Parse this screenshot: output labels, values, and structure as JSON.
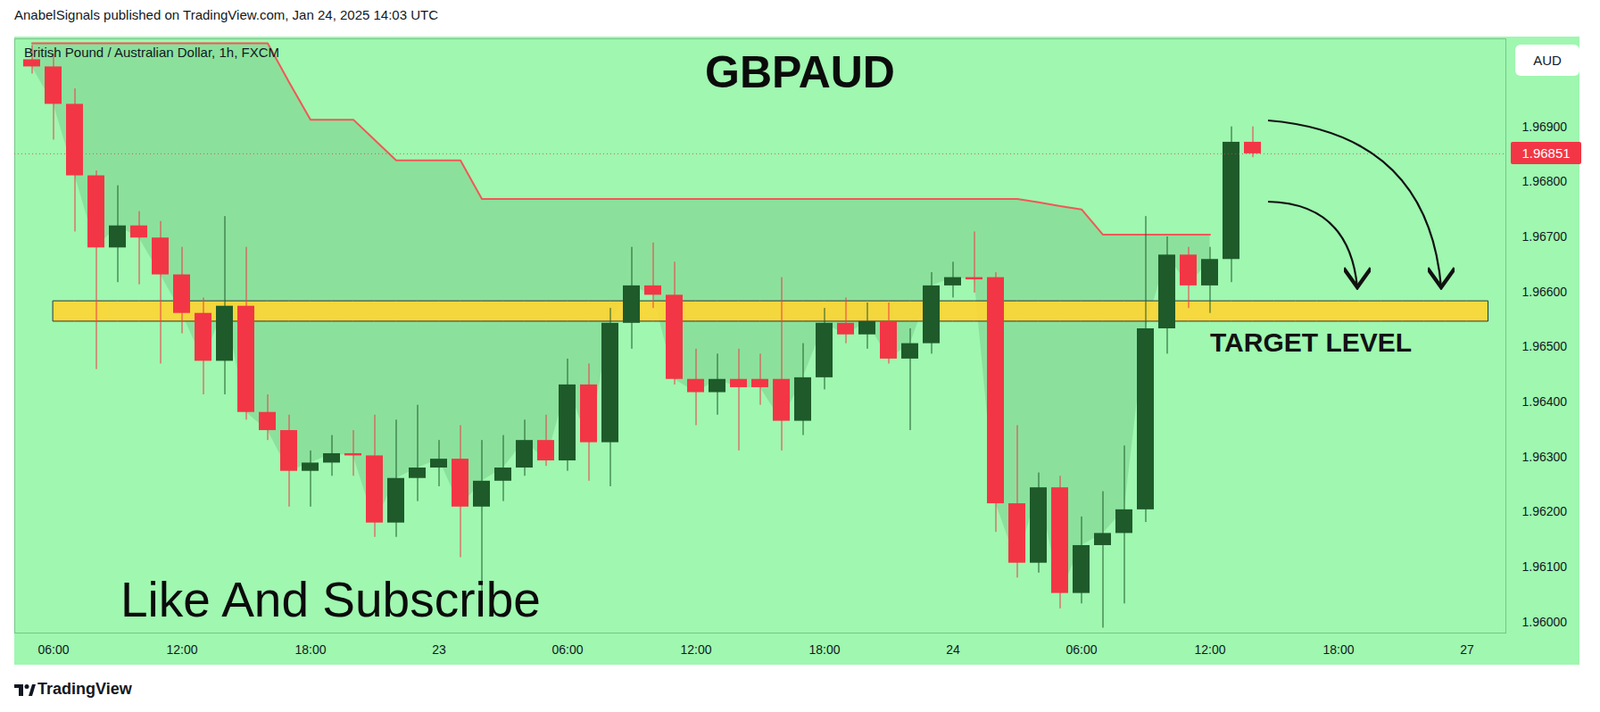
{
  "header": "AnabelSignals published on TradingView.com, Jan 24, 2025 14:03 UTC",
  "footer": "TradingView",
  "chart_data": {
    "type": "candlestick",
    "title": "GBPAUD",
    "subtitle": "British Pound / Australian Dollar, 1h, FXCM",
    "currency": "AUD",
    "categories": [
      null,
      "06:00",
      null,
      null,
      null,
      null,
      null,
      "12:00",
      null,
      null,
      null,
      null,
      null,
      "18:00",
      null,
      null,
      null,
      null,
      null,
      "23",
      null,
      null,
      null,
      null,
      null,
      "06:00",
      null,
      null,
      null,
      null,
      null,
      "12:00",
      null,
      null,
      null,
      null,
      null,
      "18:00",
      null,
      null,
      null,
      null,
      null,
      "24",
      null,
      null,
      null,
      null,
      null,
      "06:00",
      null,
      null,
      null,
      null,
      null,
      "12:00",
      null,
      null,
      null,
      null,
      null,
      "18:00",
      null,
      null,
      null,
      null,
      null,
      "27",
      null
    ],
    "series": [
      {
        "type": "candlestick",
        "colors": {
          "up": "#1e5a2a",
          "down": "#f23645"
        },
        "open": [
          1.97022,
          1.97009,
          1.96941,
          1.96811,
          1.9668,
          1.9672,
          1.96698,
          1.96631,
          1.96561,
          1.96474,
          1.96574,
          1.96381,
          1.96348,
          1.96274,
          1.96289,
          1.96306,
          1.96302,
          1.9618,
          1.96261,
          1.9628,
          1.96296,
          1.96209,
          1.96256,
          1.9628,
          1.9633,
          1.96293,
          1.96431,
          1.96326,
          1.96543,
          1.96611,
          1.96594,
          1.96441,
          1.96417,
          1.96441,
          1.96441,
          1.96441,
          1.96365,
          1.96444,
          1.96543,
          1.96522,
          1.96546,
          1.96478,
          1.96506,
          1.96611,
          1.96626,
          1.96626,
          1.96215,
          1.96107,
          1.96244,
          1.96052,
          1.96139,
          1.96161,
          1.96204,
          1.96533,
          1.96667,
          1.96611,
          1.96659,
          1.96872,
          null,
          null,
          null,
          null,
          null,
          null,
          null,
          null,
          null,
          null,
          null
        ],
        "high": [
          1.97048,
          1.97033,
          1.96969,
          1.9682,
          1.96793,
          1.96746,
          1.96728,
          1.96681,
          1.96589,
          1.96737,
          1.96681,
          1.96413,
          1.96376,
          1.96311,
          1.96339,
          1.96348,
          1.96376,
          1.96367,
          1.96394,
          1.9633,
          1.96357,
          1.9633,
          1.96339,
          1.96367,
          1.96376,
          1.96478,
          1.96469,
          1.9657,
          1.96681,
          1.96689,
          1.96654,
          1.96496,
          1.96487,
          1.96496,
          1.96487,
          1.96626,
          1.96506,
          1.9657,
          1.96589,
          1.9658,
          1.9658,
          1.96533,
          1.96635,
          1.96654,
          1.96709,
          1.96635,
          1.96357,
          1.96271,
          1.96265,
          1.96191,
          1.96237,
          1.9632,
          1.96737,
          1.967,
          1.96681,
          1.96681,
          1.969,
          1.969,
          null,
          null,
          null,
          null,
          null,
          null,
          null,
          null,
          null,
          null,
          null
        ],
        "low": [
          1.96996,
          1.96876,
          1.96709,
          1.96459,
          1.96617,
          1.96613,
          1.96469,
          1.96524,
          1.96413,
          1.96413,
          1.96367,
          1.9633,
          1.96209,
          1.96209,
          1.96265,
          1.96265,
          1.96154,
          1.96154,
          1.96219,
          1.96246,
          1.96117,
          1.96052,
          1.96219,
          1.96265,
          1.96283,
          1.96274,
          1.96256,
          1.96246,
          1.96496,
          1.9657,
          1.96431,
          1.96357,
          1.96376,
          1.96311,
          1.96394,
          1.96311,
          1.96339,
          1.96422,
          1.96506,
          1.96496,
          1.96469,
          1.96348,
          1.96487,
          1.96589,
          1.96598,
          1.96163,
          1.9608,
          1.96089,
          1.96024,
          1.96033,
          1.95989,
          1.96033,
          1.96181,
          1.96487,
          1.9657,
          1.96561,
          1.96617,
          1.96844,
          null,
          null,
          null,
          null,
          null,
          null,
          null,
          null,
          null,
          null,
          null
        ],
        "close": [
          1.97009,
          1.96941,
          1.96811,
          1.9668,
          1.9672,
          1.96698,
          1.96631,
          1.96561,
          1.96474,
          1.96574,
          1.96381,
          1.96348,
          1.96274,
          1.96289,
          1.96306,
          1.96302,
          1.9618,
          1.96261,
          1.9628,
          1.96296,
          1.96209,
          1.96256,
          1.9628,
          1.9633,
          1.96293,
          1.96431,
          1.96326,
          1.96543,
          1.96611,
          1.96594,
          1.96441,
          1.96417,
          1.96441,
          1.96426,
          1.96426,
          1.96365,
          1.96444,
          1.96543,
          1.96522,
          1.96546,
          1.96478,
          1.96506,
          1.96611,
          1.96626,
          1.96622,
          1.96215,
          1.96107,
          1.96244,
          1.96052,
          1.96139,
          1.96161,
          1.96204,
          1.96533,
          1.96667,
          1.96611,
          1.96659,
          1.96872,
          1.96851,
          null,
          null,
          null,
          null,
          null,
          null,
          null,
          null,
          null,
          null,
          null
        ]
      },
      {
        "type": "line",
        "color": "#f25757",
        "values": [
          1.97052,
          1.97052,
          1.97052,
          1.97052,
          1.97052,
          1.97052,
          1.97052,
          1.97052,
          1.97052,
          1.97052,
          1.97052,
          1.97052,
          1.96981,
          1.96913,
          1.96913,
          1.96913,
          1.96876,
          1.96839,
          1.96839,
          1.96839,
          1.96839,
          1.96769,
          1.96769,
          1.96769,
          1.96769,
          1.96769,
          1.96769,
          1.96769,
          1.96769,
          1.96769,
          1.96769,
          1.96769,
          1.96769,
          1.96769,
          1.96769,
          1.96769,
          1.96769,
          1.96769,
          1.96769,
          1.96769,
          1.96769,
          1.96769,
          1.96769,
          1.96769,
          1.96769,
          1.96769,
          1.96769,
          1.96763,
          1.96756,
          1.9675,
          1.96704,
          1.96704,
          1.96704,
          1.96704,
          1.96704,
          1.96704,
          null,
          null,
          null,
          null,
          null,
          null,
          null,
          null,
          null,
          null,
          null,
          null,
          null
        ]
      }
    ],
    "last_price": {
      "value": 1.96851,
      "label": "1.96851"
    },
    "annotations": [
      {
        "text": "TARGET LEVEL",
        "low": 1.96546,
        "high": 1.96583
      },
      {
        "text": "Like And Subscribe"
      }
    ],
    "ylim": [
      1.9598,
      1.9706
    ],
    "yticks": [
      {
        "value": 1.96,
        "label": "1.96000"
      },
      {
        "value": 1.961,
        "label": "1.96100"
      },
      {
        "value": 1.962,
        "label": "1.96200"
      },
      {
        "value": 1.963,
        "label": "1.96300"
      },
      {
        "value": 1.964,
        "label": "1.96400"
      },
      {
        "value": 1.965,
        "label": "1.96500"
      },
      {
        "value": 1.966,
        "label": "1.96600"
      },
      {
        "value": 1.967,
        "label": "1.96700"
      },
      {
        "value": 1.968,
        "label": "1.96800"
      },
      {
        "value": 1.969,
        "label": "1.96900"
      }
    ],
    "grid": false
  }
}
